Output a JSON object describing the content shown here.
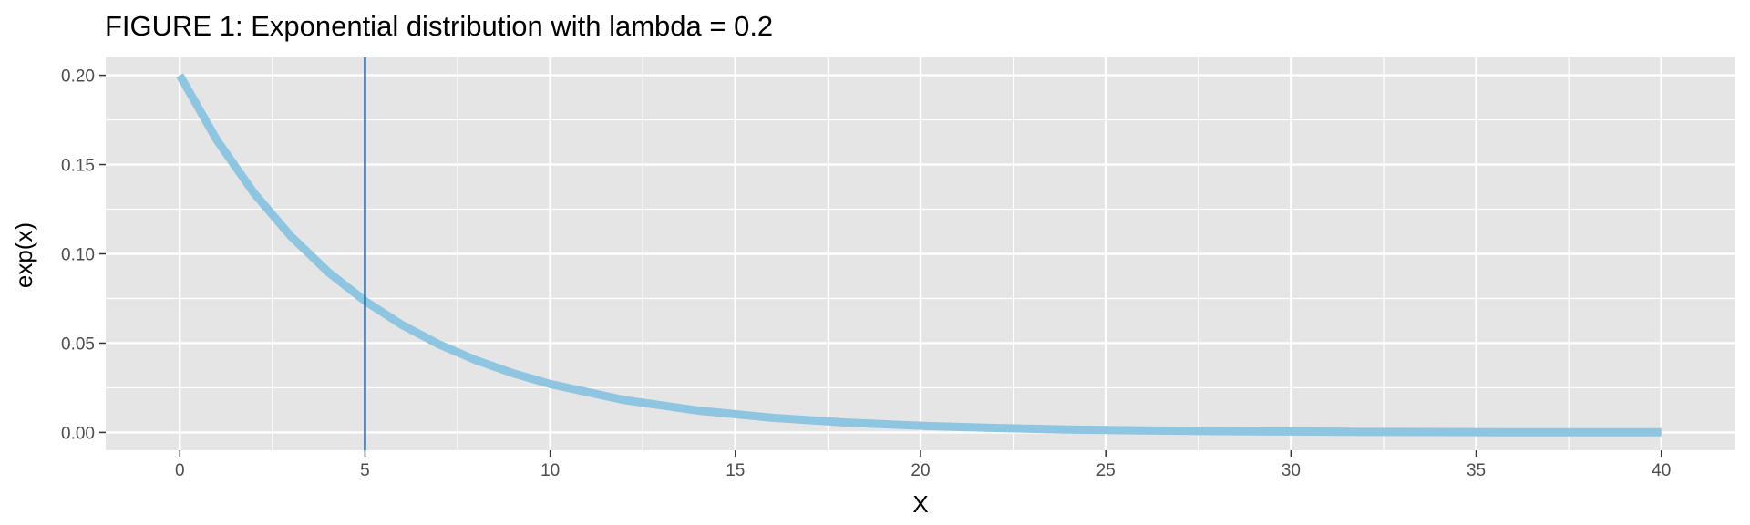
{
  "chart_data": {
    "type": "line",
    "title": "FIGURE 1: Exponential distribution with lambda = 0.2",
    "xlabel": "X",
    "ylabel": "exp(x)",
    "xlim": [
      -2,
      42
    ],
    "ylim": [
      -0.01,
      0.21
    ],
    "x_ticks": [
      0,
      5,
      10,
      15,
      20,
      25,
      30,
      35,
      40
    ],
    "x_tick_labels": [
      "0",
      "5",
      "10",
      "15",
      "20",
      "25",
      "30",
      "35",
      "40"
    ],
    "y_ticks": [
      0,
      0.05,
      0.1,
      0.15,
      0.2
    ],
    "y_tick_labels": [
      "0.00",
      "0.05",
      "0.10",
      "0.15",
      "0.20"
    ],
    "grid": true,
    "series": [
      {
        "color": "#8ec5e1",
        "x": [
          0,
          1,
          2,
          3,
          4,
          5,
          6,
          7,
          8,
          9,
          10,
          12,
          14,
          16,
          18,
          20,
          22,
          24,
          26,
          28,
          30,
          32,
          34,
          36,
          38,
          40
        ],
        "y": [
          0.2,
          0.1637,
          0.1341,
          0.1098,
          0.0899,
          0.0736,
          0.0602,
          0.0493,
          0.0404,
          0.0331,
          0.0271,
          0.0181,
          0.0122,
          0.0082,
          0.0055,
          0.0037,
          0.0025,
          0.0016,
          0.0011,
          0.0007,
          0.0005,
          0.0003,
          0.0002,
          0.0001,
          0.0001,
          0.0001
        ]
      }
    ],
    "vline": {
      "x": 5,
      "color": "#1f65a8"
    },
    "panel_color": "#e5e5e5",
    "grid_color": "#ffffff"
  }
}
